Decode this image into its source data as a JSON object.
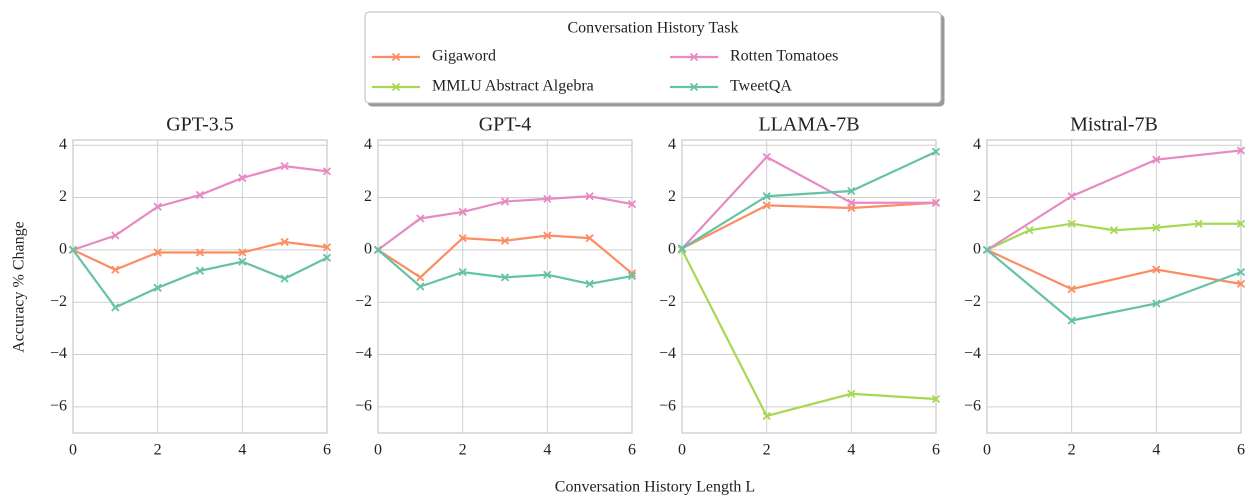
{
  "ylabel": "Accuracy % Change",
  "xlabel": "Conversation History Length L",
  "legend_title": "Conversation History Task",
  "chart_data": [
    {
      "type": "line",
      "title": "GPT-3.5",
      "xlim": [
        0,
        6
      ],
      "ylim": [
        -7,
        4.2
      ],
      "grid": true,
      "xticks": [
        0,
        2,
        4,
        6
      ],
      "yticks": [
        4,
        2,
        0,
        {
          "value": -2,
          "label": "−2"
        },
        {
          "value": -4,
          "label": "−4"
        },
        {
          "value": -6,
          "label": "−6"
        }
      ],
      "series": [
        {
          "name": "Gigaword",
          "color": "#fc8d62",
          "x": [
            0,
            1,
            2,
            3,
            4,
            5,
            6
          ],
          "values": [
            0,
            -0.76,
            -0.1,
            -0.1,
            -0.1,
            0.3,
            0.1
          ]
        },
        {
          "name": "Rotten Tomatoes",
          "color": "#e78ac3",
          "x": [
            0,
            1,
            2,
            3,
            4,
            5,
            6
          ],
          "values": [
            0,
            0.55,
            1.65,
            2.1,
            2.75,
            3.2,
            3.0
          ]
        },
        {
          "name": "TweetQA",
          "color": "#66c2a5",
          "x": [
            0,
            1,
            2,
            3,
            4,
            5,
            6
          ],
          "values": [
            0,
            -2.2,
            -1.45,
            -0.8,
            -0.45,
            -1.1,
            -0.3
          ]
        }
      ]
    },
    {
      "type": "line",
      "title": "GPT-4",
      "xlim": [
        0,
        6
      ],
      "ylim": [
        -7,
        4.2
      ],
      "grid": true,
      "xticks": [
        0,
        2,
        4,
        6
      ],
      "yticks": [
        4,
        2,
        0,
        {
          "value": -2,
          "label": "−2"
        },
        {
          "value": -4,
          "label": "−4"
        },
        {
          "value": -6,
          "label": "−6"
        }
      ],
      "series": [
        {
          "name": "Gigaword",
          "color": "#fc8d62",
          "x": [
            0,
            1,
            2,
            3,
            4,
            5,
            6
          ],
          "values": [
            0,
            -1.05,
            0.45,
            0.35,
            0.55,
            0.45,
            -0.9
          ]
        },
        {
          "name": "Rotten Tomatoes",
          "color": "#e78ac3",
          "x": [
            0,
            1,
            2,
            3,
            4,
            5,
            6
          ],
          "values": [
            0,
            1.2,
            1.45,
            1.85,
            1.95,
            2.05,
            1.75
          ]
        },
        {
          "name": "TweetQA",
          "color": "#66c2a5",
          "x": [
            0,
            1,
            2,
            3,
            4,
            5,
            6
          ],
          "values": [
            0,
            -1.4,
            -0.85,
            -1.05,
            -0.95,
            -1.3,
            -1.0
          ]
        }
      ]
    },
    {
      "type": "line",
      "title": "LLAMA-7B",
      "xlim": [
        0,
        6
      ],
      "ylim": [
        -7,
        4.2
      ],
      "grid": true,
      "xticks": [
        0,
        2,
        4,
        6
      ],
      "yticks": [
        4,
        2,
        0,
        {
          "value": -2,
          "label": "−2"
        },
        {
          "value": -4,
          "label": "−4"
        },
        {
          "value": -6,
          "label": "−6"
        }
      ],
      "series": [
        {
          "name": "Gigaword",
          "color": "#fc8d62",
          "x": [
            0,
            2,
            4,
            6
          ],
          "values": [
            0.05,
            1.7,
            1.6,
            1.8
          ]
        },
        {
          "name": "MMLU Abstract Algebra",
          "color": "#a6d854",
          "x": [
            0,
            2,
            4,
            6
          ],
          "values": [
            0,
            -6.35,
            -5.5,
            -5.7
          ]
        },
        {
          "name": "Rotten Tomatoes",
          "color": "#e78ac3",
          "x": [
            0,
            2,
            4,
            6
          ],
          "values": [
            0.05,
            3.55,
            1.8,
            1.8
          ]
        },
        {
          "name": "TweetQA",
          "color": "#66c2a5",
          "x": [
            0,
            2,
            4,
            6
          ],
          "values": [
            0.05,
            2.05,
            2.25,
            3.75
          ]
        }
      ]
    },
    {
      "type": "line",
      "title": "Mistral-7B",
      "xlim": [
        0,
        6
      ],
      "ylim": [
        -7,
        4.2
      ],
      "grid": true,
      "xticks": [
        0,
        2,
        4,
        6
      ],
      "yticks": [
        4,
        2,
        0,
        {
          "value": -2,
          "label": "−2"
        },
        {
          "value": -4,
          "label": "−4"
        },
        {
          "value": -6,
          "label": "−6"
        }
      ],
      "series": [
        {
          "name": "Gigaword",
          "color": "#fc8d62",
          "x": [
            0,
            2,
            4,
            6
          ],
          "values": [
            0,
            -1.5,
            -0.75,
            -1.3
          ]
        },
        {
          "name": "MMLU Abstract Algebra",
          "color": "#a6d854",
          "x": [
            0,
            1,
            2,
            3,
            4,
            5,
            6
          ],
          "values": [
            0,
            0.75,
            1.0,
            0.75,
            0.85,
            1.0,
            1.0
          ]
        },
        {
          "name": "Rotten Tomatoes",
          "color": "#e78ac3",
          "bold": true,
          "x": [
            0,
            2,
            4,
            6
          ],
          "values": [
            0,
            2.05,
            3.45,
            3.8
          ]
        },
        {
          "name": "TweetQA",
          "color": "#66c2a5",
          "x": [
            0,
            2,
            4,
            6
          ],
          "values": [
            0,
            -2.7,
            -2.05,
            -0.85
          ]
        }
      ]
    }
  ]
}
